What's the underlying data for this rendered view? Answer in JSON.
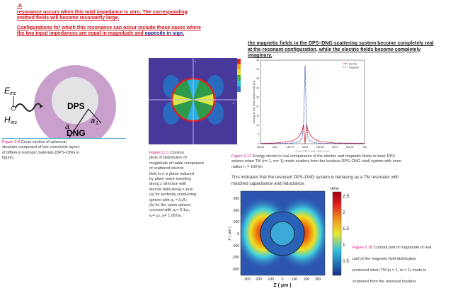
{
  "intro": {
    "marker": ".A",
    "line1": "resonance occurs when this total impedance is zero. The corresponding emitted fields will become resonantly large.",
    "line2a": "Configurations for which this resonance can occur include those cases where the two input impedances are equal in magnitude and ",
    "line2b": "opposite in sign."
  },
  "fig28": {
    "labels": {
      "e": "E",
      "e_sub": "inc",
      "h": "H",
      "h_sub": "inc",
      "dps": "DPS",
      "dng": "DNG",
      "a": "a",
      "a1": "a",
      "a1_sub": "1"
    },
    "label": "Figure 2.8",
    "caption": " Cross section of spherical structure composed of two concentric layers of different isotropic materials (DPS–DNG in figure).",
    "colors": {
      "outer": "#c9a0cc",
      "inner": "#e3e3e6"
    }
  },
  "fig211": {
    "label": "Figure 2.11",
    "lines": [
      " Contour",
      "plots of distribution of",
      "magnitude of radial component",
      "of scattered electric",
      "field in x–z plane induced",
      "by plane wave traveling",
      "along z direction with",
      "electric field along x axis:",
      "(a) for perfectly conducting",
      "sphere with a₁ = λ₀/5;",
      "(b) for the same sphere,",
      "covered with a₂= 0.1a₁,",
      "ε₂= μ₀, a= 1.087a₁."
    ],
    "axis": {
      "z": "z",
      "x": "x"
    }
  },
  "right_text": "the magnetic fields in the DPS–DNG scattering system become completely real at the resonant configuration, while the electric fields become completely imaginary.",
  "chart_data": [
    {
      "type": "line",
      "xlabel": "Outer DNG shell radius (μm)",
      "ylabel": "Energy in real field components (nJ)",
      "xlim": [
        185.65,
        186
      ],
      "ylim": [
        0,
        45
      ],
      "xticks": [
        "185.65",
        "185.7",
        "185.75",
        "185.8",
        "185.85",
        "185.9",
        "185.95",
        "186"
      ],
      "yticks": [
        "0",
        "5",
        "10",
        "15",
        "20",
        "25",
        "30",
        "35",
        "40",
        "45"
      ],
      "legend": "top-right",
      "series": [
        {
          "name": "Electric",
          "color": "#d02030",
          "style": "solid",
          "x": [
            185.65,
            185.7,
            185.75,
            185.77,
            185.78,
            185.79,
            185.795,
            185.8,
            185.805,
            185.81,
            185.82,
            185.83,
            185.85,
            185.9,
            186
          ],
          "y": [
            0.2,
            0.4,
            1.2,
            2.5,
            4,
            7,
            10.5,
            0,
            10.5,
            7,
            4,
            2.5,
            1.2,
            0.4,
            0.2
          ]
        },
        {
          "name": "Magnetic",
          "color": "#2030a0",
          "style": "dashed",
          "x": [
            185.65,
            185.75,
            185.78,
            185.79,
            185.795,
            185.798,
            185.8,
            185.802,
            185.805,
            185.81,
            185.82,
            185.85,
            186
          ],
          "y": [
            0,
            0.2,
            1,
            3,
            10,
            30,
            42,
            30,
            10,
            3,
            1,
            0.2,
            0
          ]
        }
      ]
    },
    {
      "type": "heatmap",
      "xlabel": "Z ( μm )",
      "ylabel": "X ( μm )",
      "xticks": [
        "-300",
        "-200",
        "-100",
        "0",
        "100",
        "200",
        "300"
      ],
      "yticks": [
        "300",
        "200",
        "100",
        "0",
        "-100",
        "-200",
        "-300"
      ],
      "colorbar": {
        "unit": "[A/m]",
        "ticks": [
          "2.5",
          "2",
          "1.5",
          "1",
          "0.5"
        ]
      }
    }
  ],
  "fig217": {
    "label": "Figure 2.17",
    "caption": " Energy stored in real components of the electric and magnetic fields in inner DPS sphere when TM (n= 1, m= 1) mode scatters from the lossless DPS–DNG shell system with inner radius r₁ = 100 ʃm."
  },
  "paragraph": "This indicates that the resonant DPS–DNG system is behaving as a TM resonator with matched capacitance and inductance.",
  "fig218": {
    "label": "Figure 2.18",
    "lines": [
      " Contour plot of magnitude of real",
      "part of the magnetic field distribution",
      "produced when TM (n = 1, m = 1) mode is",
      "scattered from the resonant lossless"
    ]
  }
}
